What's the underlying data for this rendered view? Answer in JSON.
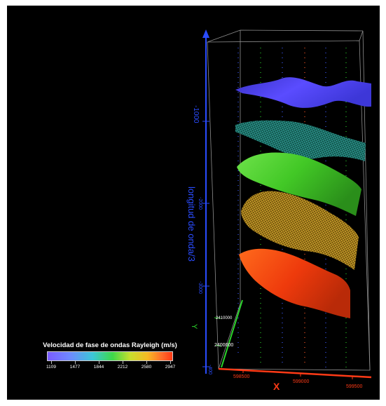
{
  "scene": {
    "background": "#000000",
    "z_axis": {
      "label": "longitud de onda/3",
      "ticks": [
        "-1000",
        "-2000",
        "-3000",
        "-400"
      ],
      "color": "#2a4cff"
    },
    "x_axis": {
      "label": "X",
      "ticks": [
        "598500",
        "599000",
        "599500"
      ],
      "color": "#ff3a16"
    },
    "y_axis": {
      "label": "Y",
      "ticks": [
        "2410000",
        "2400000"
      ],
      "color": "#2bd42b"
    },
    "surfaces": [
      {
        "name": "blue",
        "color": "#4a3cf0",
        "style": "solid"
      },
      {
        "name": "teal",
        "color": "#1f8f86",
        "style": "mesh"
      },
      {
        "name": "green",
        "color": "#48d02a",
        "style": "solid"
      },
      {
        "name": "gold",
        "color": "#d7a322",
        "style": "mesh"
      },
      {
        "name": "orange",
        "color": "#ff4a12",
        "style": "solid"
      }
    ]
  },
  "legend": {
    "title": "Velocidad de fase de ondas Rayleigh (m/s)",
    "ticks": [
      "1109",
      "1477",
      "1844",
      "2212",
      "2580",
      "2947"
    ]
  }
}
